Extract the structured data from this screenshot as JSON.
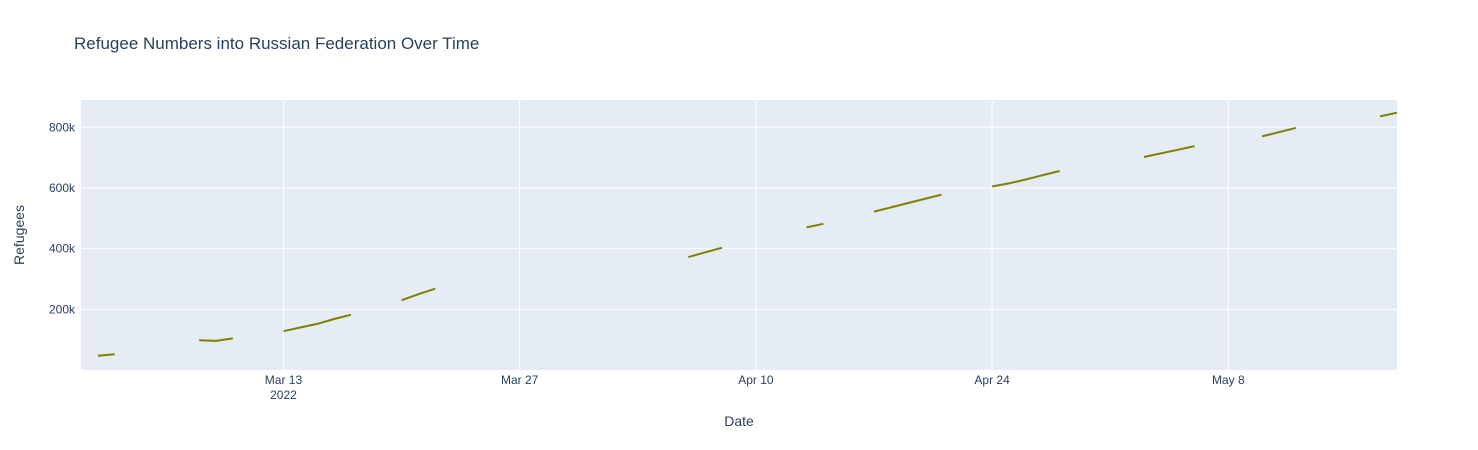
{
  "chart_data": {
    "type": "line",
    "title": "Refugee Numbers into Russian Federation Over Time",
    "xlabel": "Date",
    "ylabel": "Refugees",
    "x_axis": "date",
    "xlim": [
      "2022-03-01",
      "2022-05-18"
    ],
    "ylim": [
      0,
      890000
    ],
    "x_ticks": [
      {
        "date": "2022-03-13",
        "label": "Mar 13",
        "sublabel": "2022"
      },
      {
        "date": "2022-03-27",
        "label": "Mar 27",
        "sublabel": ""
      },
      {
        "date": "2022-04-10",
        "label": "Apr 10",
        "sublabel": ""
      },
      {
        "date": "2022-04-24",
        "label": "Apr 24",
        "sublabel": ""
      },
      {
        "date": "2022-05-08",
        "label": "May 8",
        "sublabel": ""
      }
    ],
    "y_ticks": [
      {
        "value": 200000,
        "label": "200k"
      },
      {
        "value": 400000,
        "label": "400k"
      },
      {
        "value": 600000,
        "label": "600k"
      },
      {
        "value": 800000,
        "label": "800k"
      }
    ],
    "grid": true,
    "series": [
      {
        "color": "#808000",
        "segments": [
          [
            [
              "2022-03-02",
              47000
            ],
            [
              "2022-03-03",
              52000
            ]
          ],
          [
            [
              "2022-03-08",
              98000
            ],
            [
              "2022-03-09",
              96000
            ],
            [
              "2022-03-10",
              104000
            ]
          ],
          [
            [
              "2022-03-13",
              128000
            ],
            [
              "2022-03-14",
              140000
            ],
            [
              "2022-03-15",
              152000
            ],
            [
              "2022-03-16",
              168000
            ],
            [
              "2022-03-17",
              182000
            ]
          ],
          [
            [
              "2022-03-20",
              230000
            ],
            [
              "2022-03-21",
              250000
            ],
            [
              "2022-03-22",
              268000
            ]
          ],
          [
            [
              "2022-04-06",
              372000
            ],
            [
              "2022-04-07",
              388000
            ],
            [
              "2022-04-08",
              403000
            ]
          ],
          [
            [
              "2022-04-13",
              470000
            ],
            [
              "2022-04-14",
              482000
            ]
          ],
          [
            [
              "2022-04-17",
              522000
            ],
            [
              "2022-04-18",
              536000
            ],
            [
              "2022-04-19",
              550000
            ],
            [
              "2022-04-20",
              564000
            ],
            [
              "2022-04-21",
              578000
            ]
          ],
          [
            [
              "2022-04-24",
              605000
            ],
            [
              "2022-04-25",
              615000
            ],
            [
              "2022-04-26",
              628000
            ],
            [
              "2022-04-27",
              642000
            ],
            [
              "2022-04-28",
              656000
            ]
          ],
          [
            [
              "2022-05-03",
              702000
            ],
            [
              "2022-05-04",
              714000
            ],
            [
              "2022-05-05",
              726000
            ],
            [
              "2022-05-06",
              738000
            ]
          ],
          [
            [
              "2022-05-10",
              770000
            ],
            [
              "2022-05-11",
              784000
            ],
            [
              "2022-05-12",
              798000
            ]
          ],
          [
            [
              "2022-05-17",
              836000
            ],
            [
              "2022-05-18",
              848000
            ]
          ]
        ]
      }
    ]
  }
}
